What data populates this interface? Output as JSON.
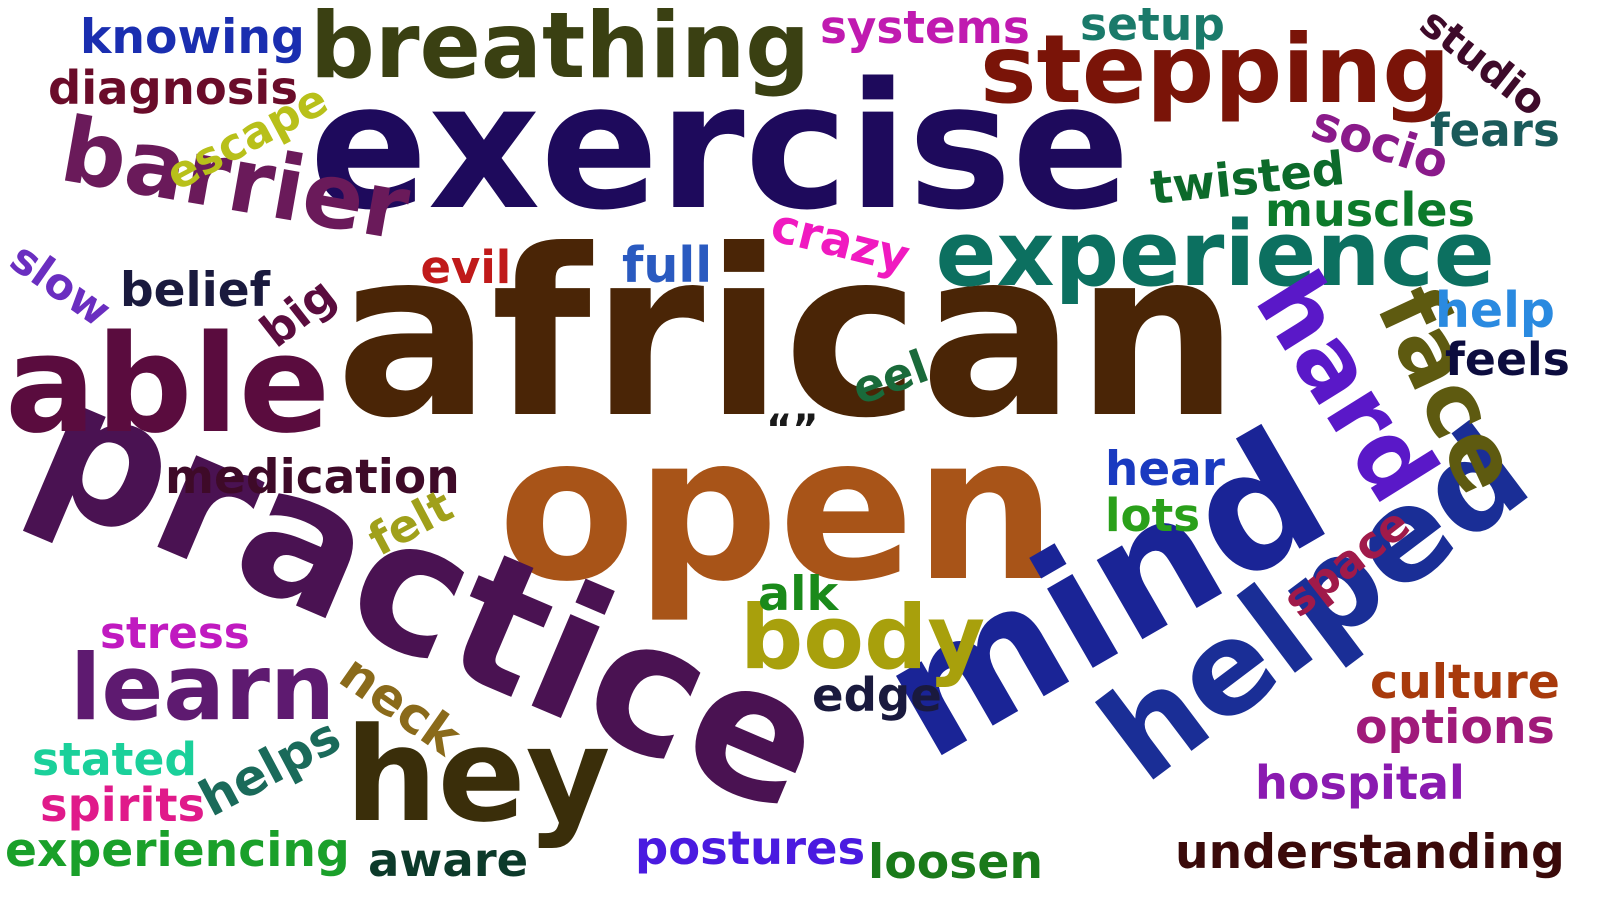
{
  "words": [
    {
      "text": "african",
      "color": "#4a2506"
    },
    {
      "text": "exercise",
      "color": "#1e0a5c"
    },
    {
      "text": "open",
      "color": "#a85418"
    },
    {
      "text": "practice",
      "color": "#4a1252"
    },
    {
      "text": "mind",
      "color": "#1a2496"
    },
    {
      "text": "helped",
      "color": "#1a2e96"
    },
    {
      "text": "breathing",
      "color": "#3a4012"
    },
    {
      "text": "stepping",
      "color": "#7a1408"
    },
    {
      "text": "able",
      "color": "#5a0c3e"
    },
    {
      "text": "hey",
      "color": "#3a2e0a"
    },
    {
      "text": "experience",
      "color": "#0c7060"
    },
    {
      "text": "barrier",
      "color": "#6a1a5a"
    },
    {
      "text": "learn",
      "color": "#5e1a70"
    },
    {
      "text": "body",
      "color": "#a8a00c"
    },
    {
      "text": "hard",
      "color": "#5a18c8"
    },
    {
      "text": "face",
      "color": "#5e5a10"
    },
    {
      "text": "medication",
      "color": "#3e0a28"
    },
    {
      "text": "knowing",
      "color": "#1a2eb0"
    },
    {
      "text": "diagnosis",
      "color": "#6a0c2a"
    },
    {
      "text": "systems",
      "color": "#c01ab0"
    },
    {
      "text": "setup",
      "color": "#1a7a6a"
    },
    {
      "text": "studio",
      "color": "#3e0a2a"
    },
    {
      "text": "socio",
      "color": "#8a1a8a"
    },
    {
      "text": "fears",
      "color": "#1a5a5a"
    },
    {
      "text": "twisted",
      "color": "#0c6a2a"
    },
    {
      "text": "muscles",
      "color": "#0c7a2a"
    },
    {
      "text": "escape",
      "color": "#b8c01a"
    },
    {
      "text": "slow",
      "color": "#6a2ec0"
    },
    {
      "text": "belief",
      "color": "#1a1a3e"
    },
    {
      "text": "big",
      "color": "#5a0c3e"
    },
    {
      "text": "evil",
      "color": "#c01a1a"
    },
    {
      "text": "full",
      "color": "#2a5ac0"
    },
    {
      "text": "crazy",
      "color": "#f01ac0"
    },
    {
      "text": "help",
      "color": "#2a8ae0"
    },
    {
      "text": "feels",
      "color": "#0c0c3e"
    },
    {
      "text": "eel",
      "color": "#1a6a3a"
    },
    {
      "text": "“”",
      "color": "#1a1a1a"
    },
    {
      "text": "hear",
      "color": "#1a3ac0"
    },
    {
      "text": "lots",
      "color": "#2aa01a"
    },
    {
      "text": "felt",
      "color": "#a0a01a"
    },
    {
      "text": "space",
      "color": "#a01a4a"
    },
    {
      "text": "alk",
      "color": "#1a8a1a"
    },
    {
      "text": "stress",
      "color": "#c01ac0"
    },
    {
      "text": "neck",
      "color": "#8a6a1a"
    },
    {
      "text": "edge",
      "color": "#1a1a3e"
    },
    {
      "text": "culture",
      "color": "#a83a0c"
    },
    {
      "text": "options",
      "color": "#a01a7a"
    },
    {
      "text": "stated",
      "color": "#1ad09a"
    },
    {
      "text": "helps",
      "color": "#1a6a5a"
    },
    {
      "text": "spirits",
      "color": "#e01a8a"
    },
    {
      "text": "hospital",
      "color": "#8a1ab0"
    },
    {
      "text": "postures",
      "color": "#4a1ae0"
    },
    {
      "text": "experiencing",
      "color": "#1aa02a"
    },
    {
      "text": "aware",
      "color": "#0c3a2a"
    },
    {
      "text": "loosen",
      "color": "#1a7a1a"
    },
    {
      "text": "understanding",
      "color": "#3a0a0a"
    }
  ]
}
